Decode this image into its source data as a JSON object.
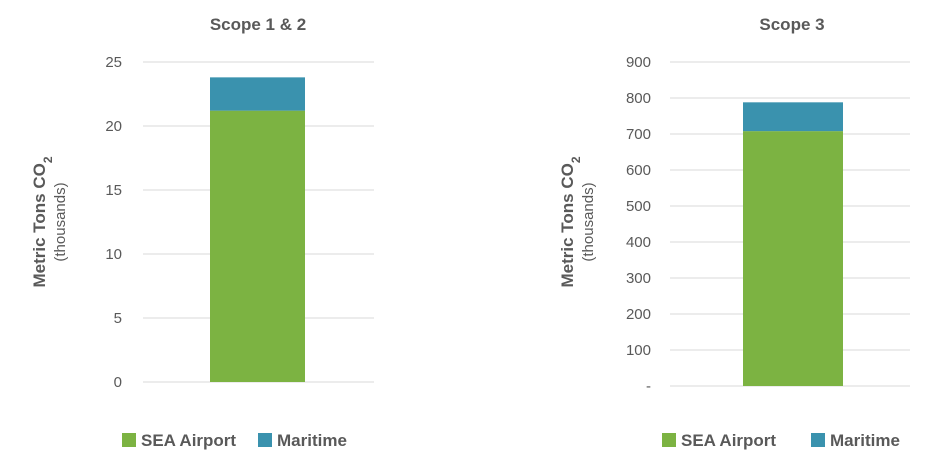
{
  "colors": {
    "sea_airport": "#7CB342",
    "maritime": "#3A92AE",
    "grid": "#D9D9D9",
    "text": "#595959"
  },
  "chart_data": [
    {
      "type": "bar",
      "stacked": true,
      "title": "Scope 1 & 2",
      "ylabel": {
        "main": "Metric Tons CO",
        "subscript": "2",
        "sub": "(thousands)"
      },
      "ylim": [
        0,
        25
      ],
      "yticks": [
        {
          "value": 0,
          "label": "0"
        },
        {
          "value": 5,
          "label": "5"
        },
        {
          "value": 10,
          "label": "10"
        },
        {
          "value": 15,
          "label": "15"
        },
        {
          "value": 20,
          "label": "20"
        },
        {
          "value": 25,
          "label": "25"
        }
      ],
      "grid": true,
      "legend_position": "bottom",
      "categories": [
        ""
      ],
      "series": [
        {
          "name": "SEA Airport",
          "values": [
            21.2
          ]
        },
        {
          "name": "Maritime",
          "values": [
            2.6
          ]
        }
      ]
    },
    {
      "type": "bar",
      "stacked": true,
      "title": "Scope 3",
      "ylabel": {
        "main": "Metric Tons CO",
        "subscript": "2",
        "sub": "(thousands)"
      },
      "ylim": [
        0,
        900
      ],
      "yticks": [
        {
          "value": 0,
          "label": "-"
        },
        {
          "value": 100,
          "label": "100"
        },
        {
          "value": 200,
          "label": "200"
        },
        {
          "value": 300,
          "label": "300"
        },
        {
          "value": 400,
          "label": "400"
        },
        {
          "value": 500,
          "label": "500"
        },
        {
          "value": 600,
          "label": "600"
        },
        {
          "value": 700,
          "label": "700"
        },
        {
          "value": 800,
          "label": "800"
        },
        {
          "value": 900,
          "label": "900"
        }
      ],
      "grid": true,
      "legend_position": "bottom",
      "categories": [
        ""
      ],
      "series": [
        {
          "name": "SEA Airport",
          "values": [
            708
          ]
        },
        {
          "name": "Maritime",
          "values": [
            80
          ]
        }
      ]
    }
  ]
}
